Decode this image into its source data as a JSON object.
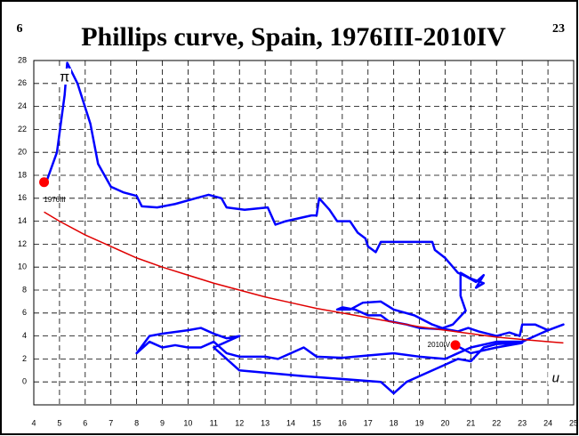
{
  "chart_data": {
    "type": "line",
    "title": "Phillips curve, Spain, 1976III-2010IV",
    "page_left": "6",
    "page_right": "23",
    "xlabel": "u",
    "ylabel": "π",
    "xlim": [
      4,
      25
    ],
    "ylim": [
      -2,
      28
    ],
    "xticks": [
      4,
      5,
      6,
      7,
      8,
      9,
      10,
      11,
      12,
      13,
      14,
      15,
      16,
      17,
      18,
      19,
      20,
      21,
      22,
      23,
      24,
      25
    ],
    "yticks": [
      0,
      2,
      4,
      6,
      8,
      10,
      12,
      14,
      16,
      18,
      20,
      22,
      24,
      26,
      28
    ],
    "grid": true,
    "series": [
      {
        "color": "#0000ff",
        "x": [
          4.4,
          4.5,
          4.9,
          5.2,
          5.3,
          5.7,
          6.2,
          6.5,
          7.0,
          7.5,
          8.0,
          8.2,
          8.8,
          9.5,
          10.3,
          10.8,
          11.3,
          11.5,
          12.2,
          13.1,
          13.4,
          13.8,
          14.2,
          14.8,
          15.0,
          15.1,
          15.5,
          15.8,
          16.3,
          16.6,
          16.9,
          17.0,
          17.3,
          17.5,
          19.0,
          19.5,
          19.6,
          20.0,
          20.5,
          20.8,
          21.2,
          21.5,
          21.2,
          21.5,
          21.0,
          20.6,
          20.6,
          20.8,
          20.3,
          19.8,
          19.0,
          18.5,
          17.8,
          17.5,
          17.0,
          16.5,
          16.0,
          15.8,
          16.3,
          16.8,
          17.5,
          18.0,
          18.8,
          19.5,
          20.0,
          20.5,
          20.9,
          21.3,
          22.0,
          22.5,
          22.9,
          23.0,
          23.5,
          24.0,
          24.6,
          24.0,
          23.0,
          22.0,
          21.0,
          20.5,
          20.0,
          19.0,
          18.0,
          17.0,
          16.0,
          15.0,
          14.5,
          13.5,
          13.0,
          12.0,
          11.5,
          11.0,
          10.5,
          10.0,
          9.5,
          9.0,
          8.5,
          8.0,
          8.5,
          9.0,
          10.0,
          10.5,
          11.0,
          11.5,
          12.0,
          11.0,
          12.0,
          14.5,
          17.5,
          18.0,
          18.5,
          19.0,
          20.0,
          20.5,
          21.0,
          21.5,
          22.0,
          23.0,
          22.0,
          21.0,
          20.4
        ],
        "values": [
          17.4,
          17.5,
          20.0,
          25.0,
          27.8,
          26.0,
          22.5,
          19.0,
          17.0,
          16.5,
          16.2,
          15.3,
          15.2,
          15.5,
          16.0,
          16.3,
          16.0,
          15.2,
          15.0,
          15.2,
          13.7,
          14.0,
          14.2,
          14.5,
          14.5,
          16.0,
          15.0,
          14.0,
          14.0,
          13.0,
          12.5,
          11.8,
          11.3,
          12.2,
          12.2,
          12.2,
          11.5,
          10.8,
          9.5,
          9.2,
          8.7,
          9.3,
          8.2,
          8.6,
          9.0,
          9.5,
          7.5,
          6.2,
          5.0,
          4.6,
          4.7,
          5.0,
          5.3,
          5.8,
          5.8,
          6.3,
          6.5,
          6.3,
          6.3,
          6.9,
          7.0,
          6.3,
          5.8,
          5.0,
          4.6,
          4.4,
          4.7,
          4.4,
          4.0,
          4.3,
          4.0,
          5.0,
          5.0,
          4.5,
          5.0,
          4.5,
          3.5,
          3.5,
          3.0,
          2.5,
          2.0,
          2.2,
          2.5,
          2.3,
          2.1,
          2.2,
          3.0,
          2.0,
          2.2,
          2.2,
          2.5,
          3.5,
          3.0,
          3.0,
          3.2,
          3.0,
          3.5,
          2.5,
          4.0,
          4.2,
          4.5,
          4.7,
          4.2,
          3.8,
          4.0,
          3.0,
          1.0,
          0.5,
          0.0,
          -1.0,
          0.0,
          0.5,
          1.5,
          2.0,
          1.8,
          3.0,
          3.3,
          3.4,
          3.0,
          2.5,
          3.2
        ]
      },
      {
        "color": "#e00000",
        "x": [
          4.4,
          5,
          6,
          7,
          8,
          9,
          10,
          11,
          12,
          13,
          14,
          15,
          16,
          17,
          18,
          19,
          20,
          21,
          22,
          23,
          24,
          24.6
        ],
        "values": [
          14.8,
          14.0,
          12.8,
          11.8,
          10.8,
          10.0,
          9.3,
          8.6,
          8.0,
          7.4,
          6.9,
          6.4,
          6.0,
          5.6,
          5.2,
          4.8,
          4.5,
          4.2,
          3.9,
          3.7,
          3.5,
          3.4
        ]
      }
    ],
    "points": [
      {
        "label": "1976III",
        "x": 4.4,
        "y": 17.4,
        "color": "#ff0000"
      },
      {
        "label": "2010IV",
        "x": 20.4,
        "y": 3.2,
        "color": "#ff0000"
      }
    ]
  }
}
